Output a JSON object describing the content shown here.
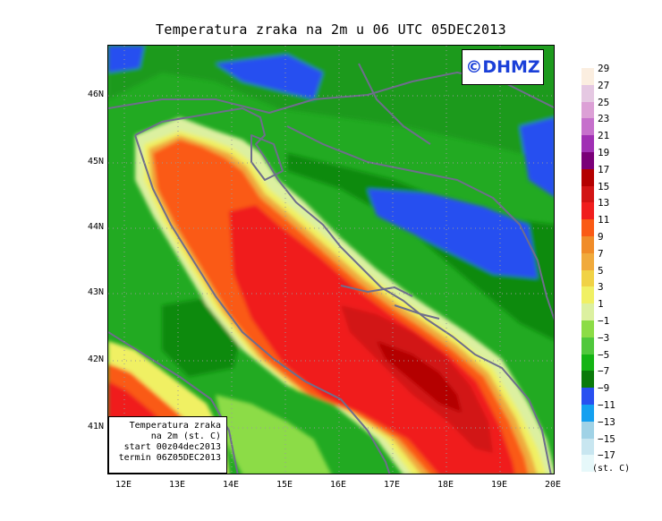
{
  "title": "Temperatura zraka na 2m u 06 UTC 05DEC2013",
  "copyright": "©DHMZ",
  "info_box": {
    "line1": "Temperatura zraka",
    "line2": "na 2m (st. C)",
    "line3": "start 00z04dec2013",
    "line4": "termin 06Z05DEC2013"
  },
  "lat_labels": [
    "46N",
    "45N",
    "44N",
    "43N",
    "42N",
    "41N"
  ],
  "lon_labels": [
    "12E",
    "13E",
    "14E",
    "15E",
    "16E",
    "17E",
    "18E",
    "19E",
    "20E"
  ],
  "legend": {
    "labels": [
      "29",
      "27",
      "25",
      "23",
      "21",
      "19",
      "17",
      "15",
      "13",
      "11",
      "9",
      "7",
      "5",
      "3",
      "1",
      "−1",
      "−3",
      "−5",
      "−7",
      "−9",
      "−11",
      "−13",
      "−15",
      "−17"
    ],
    "colors": [
      "#fbeee0",
      "#e5c8e2",
      "#dca0d6",
      "#c670cc",
      "#a030b4",
      "#7a0078",
      "#b40000",
      "#d21414",
      "#f01e1e",
      "#fa5a14",
      "#f08c28",
      "#f0aa3c",
      "#f0d246",
      "#f0f064",
      "#dcf0a0",
      "#8cdc46",
      "#50c83c",
      "#14b414",
      "#0a7a0a",
      "#2850f0",
      "#14a0f0",
      "#a0d2e6",
      "#c8e6f0",
      "#e6f8fa"
    ],
    "units": "(st. C)"
  }
}
